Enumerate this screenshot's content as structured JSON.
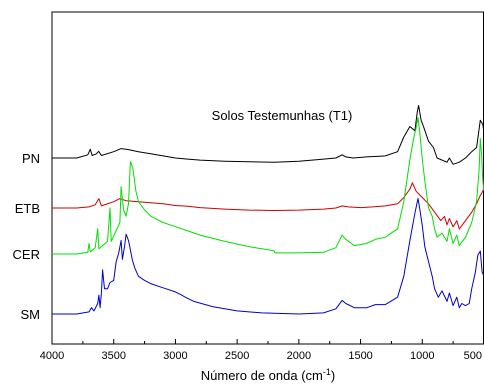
{
  "chart_data": {
    "type": "line",
    "title": "Solos Testemunhas (T1)",
    "xlabel": "Número de onda (cm",
    "xlabel_sup": "-1",
    "xlabel_close": ")",
    "ylabel": "",
    "xlim": [
      4000,
      500
    ],
    "x_reversed": true,
    "x_ticks": [
      "4000",
      "3500",
      "3000",
      "2500",
      "2000",
      "1500",
      "1000",
      "500"
    ],
    "y_ticks": [],
    "grid": false,
    "series": [
      {
        "name": "PN",
        "color": "#000000",
        "points": [
          [
            4000,
            0.0
          ],
          [
            3800,
            0.0
          ],
          [
            3710,
            0.15
          ],
          [
            3690,
            0.42
          ],
          [
            3675,
            0.12
          ],
          [
            3640,
            0.2
          ],
          [
            3622,
            0.32
          ],
          [
            3600,
            0.12
          ],
          [
            3500,
            0.3
          ],
          [
            3440,
            0.45
          ],
          [
            3380,
            0.4
          ],
          [
            3300,
            0.3
          ],
          [
            3200,
            0.2
          ],
          [
            3100,
            0.1
          ],
          [
            3000,
            0.0
          ],
          [
            2900,
            -0.05
          ],
          [
            2800,
            -0.1
          ],
          [
            2600,
            -0.15
          ],
          [
            2400,
            -0.18
          ],
          [
            2200,
            -0.2
          ],
          [
            2000,
            -0.15
          ],
          [
            1800,
            -0.05
          ],
          [
            1700,
            0.0
          ],
          [
            1650,
            0.15
          ],
          [
            1620,
            0.05
          ],
          [
            1560,
            0.0
          ],
          [
            1450,
            0.05
          ],
          [
            1300,
            0.1
          ],
          [
            1200,
            0.3
          ],
          [
            1150,
            1.0
          ],
          [
            1100,
            1.5
          ],
          [
            1060,
            1.3
          ],
          [
            1040,
            2.2
          ],
          [
            1030,
            2.5
          ],
          [
            1010,
            1.8
          ],
          [
            990,
            1.5
          ],
          [
            950,
            0.8
          ],
          [
            910,
            0.5
          ],
          [
            880,
            0.0
          ],
          [
            800,
            -0.2
          ],
          [
            780,
            0.0
          ],
          [
            750,
            -0.3
          ],
          [
            700,
            -0.2
          ],
          [
            650,
            0.0
          ],
          [
            600,
            0.3
          ],
          [
            560,
            0.5
          ],
          [
            530,
            1.8
          ],
          [
            510,
            1.6
          ],
          [
            500,
            1.2
          ]
        ]
      },
      {
        "name": "ETB",
        "color": "#cc0000",
        "points": [
          [
            4000,
            0.0
          ],
          [
            3800,
            0.0
          ],
          [
            3700,
            0.05
          ],
          [
            3650,
            0.15
          ],
          [
            3620,
            0.45
          ],
          [
            3600,
            0.1
          ],
          [
            3500,
            0.3
          ],
          [
            3450,
            0.45
          ],
          [
            3400,
            0.35
          ],
          [
            3300,
            0.3
          ],
          [
            3200,
            0.25
          ],
          [
            3100,
            0.2
          ],
          [
            3000,
            0.12
          ],
          [
            2900,
            0.08
          ],
          [
            2800,
            0.02
          ],
          [
            2600,
            -0.05
          ],
          [
            2400,
            -0.1
          ],
          [
            2200,
            -0.12
          ],
          [
            2000,
            -0.1
          ],
          [
            1800,
            -0.05
          ],
          [
            1700,
            0.0
          ],
          [
            1650,
            0.1
          ],
          [
            1600,
            0.05
          ],
          [
            1500,
            0.02
          ],
          [
            1400,
            0.05
          ],
          [
            1300,
            0.1
          ],
          [
            1200,
            0.2
          ],
          [
            1150,
            0.5
          ],
          [
            1100,
            0.9
          ],
          [
            1080,
            1.2
          ],
          [
            1050,
            0.8
          ],
          [
            1000,
            0.5
          ],
          [
            950,
            0.2
          ],
          [
            900,
            -0.2
          ],
          [
            850,
            -0.6
          ],
          [
            820,
            -0.4
          ],
          [
            800,
            -0.8
          ],
          [
            780,
            -0.5
          ],
          [
            750,
            -0.9
          ],
          [
            720,
            -0.6
          ],
          [
            700,
            -1.0
          ],
          [
            650,
            -0.6
          ],
          [
            600,
            -0.2
          ],
          [
            560,
            0.2
          ],
          [
            530,
            0.6
          ],
          [
            510,
            0.8
          ],
          [
            500,
            1.0
          ]
        ]
      },
      {
        "name": "CER",
        "color": "#00e000",
        "points": [
          [
            4000,
            0.0
          ],
          [
            3800,
            0.0
          ],
          [
            3710,
            0.08
          ],
          [
            3700,
            0.5
          ],
          [
            3690,
            0.1
          ],
          [
            3650,
            0.3
          ],
          [
            3630,
            1.2
          ],
          [
            3620,
            0.25
          ],
          [
            3550,
            0.6
          ],
          [
            3530,
            2.2
          ],
          [
            3520,
            0.6
          ],
          [
            3450,
            1.5
          ],
          [
            3440,
            3.2
          ],
          [
            3420,
            2.1
          ],
          [
            3400,
            1.8
          ],
          [
            3380,
            2.4
          ],
          [
            3365,
            4.4
          ],
          [
            3345,
            4.1
          ],
          [
            3320,
            3.0
          ],
          [
            3300,
            2.5
          ],
          [
            3250,
            2.1
          ],
          [
            3200,
            1.8
          ],
          [
            3100,
            1.5
          ],
          [
            3000,
            1.3
          ],
          [
            2900,
            1.1
          ],
          [
            2800,
            0.9
          ],
          [
            2600,
            0.6
          ],
          [
            2400,
            0.35
          ],
          [
            2200,
            0.15
          ],
          [
            2195,
            0.05
          ],
          [
            2000,
            0.05
          ],
          [
            1800,
            0.08
          ],
          [
            1700,
            0.3
          ],
          [
            1650,
            0.9
          ],
          [
            1620,
            0.7
          ],
          [
            1550,
            0.4
          ],
          [
            1450,
            0.5
          ],
          [
            1380,
            0.7
          ],
          [
            1300,
            0.8
          ],
          [
            1200,
            1.2
          ],
          [
            1150,
            2.5
          ],
          [
            1100,
            4.5
          ],
          [
            1070,
            5.5
          ],
          [
            1050,
            6.0
          ],
          [
            1035,
            6.5
          ],
          [
            1020,
            5.8
          ],
          [
            1000,
            4.5
          ],
          [
            980,
            3.5
          ],
          [
            950,
            2.2
          ],
          [
            920,
            1.8
          ],
          [
            900,
            1.2
          ],
          [
            880,
            0.8
          ],
          [
            840,
            1.0
          ],
          [
            800,
            0.6
          ],
          [
            780,
            1.2
          ],
          [
            750,
            0.5
          ],
          [
            720,
            0.9
          ],
          [
            700,
            0.4
          ],
          [
            650,
            0.8
          ],
          [
            600,
            1.5
          ],
          [
            560,
            2.5
          ],
          [
            540,
            4.0
          ],
          [
            530,
            5.5
          ],
          [
            520,
            4.8
          ],
          [
            510,
            3.5
          ],
          [
            500,
            3.0
          ]
        ]
      },
      {
        "name": "SM",
        "color": "#0000cc",
        "points": [
          [
            4000,
            0.0
          ],
          [
            3800,
            0.0
          ],
          [
            3700,
            0.1
          ],
          [
            3680,
            0.3
          ],
          [
            3660,
            0.15
          ],
          [
            3630,
            0.5
          ],
          [
            3620,
            0.9
          ],
          [
            3610,
            0.3
          ],
          [
            3600,
            1.0
          ],
          [
            3590,
            2.1
          ],
          [
            3575,
            1.2
          ],
          [
            3550,
            1.2
          ],
          [
            3530,
            1.5
          ],
          [
            3500,
            1.6
          ],
          [
            3480,
            2.5
          ],
          [
            3460,
            2.9
          ],
          [
            3440,
            3.5
          ],
          [
            3430,
            2.6
          ],
          [
            3410,
            3.3
          ],
          [
            3400,
            3.8
          ],
          [
            3380,
            3.5
          ],
          [
            3370,
            3.2
          ],
          [
            3350,
            2.6
          ],
          [
            3330,
            2.2
          ],
          [
            3300,
            1.8
          ],
          [
            3250,
            1.6
          ],
          [
            3200,
            1.45
          ],
          [
            3100,
            1.25
          ],
          [
            3000,
            1.05
          ],
          [
            2950,
            0.9
          ],
          [
            2920,
            0.8
          ],
          [
            2850,
            0.6
          ],
          [
            2700,
            0.35
          ],
          [
            2500,
            0.15
          ],
          [
            2300,
            0.05
          ],
          [
            2000,
            0.0
          ],
          [
            1800,
            0.05
          ],
          [
            1700,
            0.25
          ],
          [
            1650,
            0.65
          ],
          [
            1620,
            0.5
          ],
          [
            1550,
            0.3
          ],
          [
            1450,
            0.3
          ],
          [
            1380,
            0.45
          ],
          [
            1300,
            0.45
          ],
          [
            1200,
            0.8
          ],
          [
            1150,
            1.8
          ],
          [
            1100,
            3.5
          ],
          [
            1060,
            4.8
          ],
          [
            1035,
            5.5
          ],
          [
            1020,
            5.0
          ],
          [
            1000,
            4.2
          ],
          [
            980,
            3.2
          ],
          [
            950,
            2.5
          ],
          [
            920,
            1.8
          ],
          [
            900,
            1.2
          ],
          [
            870,
            0.8
          ],
          [
            840,
            1.1
          ],
          [
            800,
            0.6
          ],
          [
            780,
            1.0
          ],
          [
            750,
            0.4
          ],
          [
            720,
            0.8
          ],
          [
            700,
            0.3
          ],
          [
            680,
            0.5
          ],
          [
            650,
            0.4
          ],
          [
            620,
            0.5
          ],
          [
            600,
            1.2
          ],
          [
            570,
            2.0
          ],
          [
            550,
            2.8
          ],
          [
            530,
            3.0
          ],
          [
            515,
            2.0
          ],
          [
            500,
            1.8
          ]
        ]
      }
    ]
  }
}
